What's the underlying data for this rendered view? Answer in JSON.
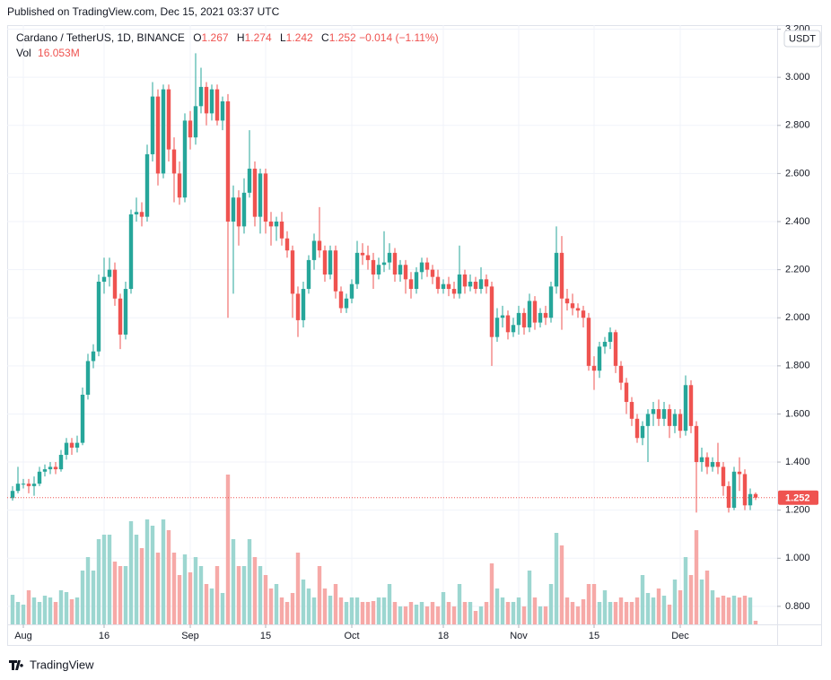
{
  "header": {
    "published": "Published on TradingView.com, Dec 15, 2021 03:37 UTC"
  },
  "footer": {
    "brand": "TradingView"
  },
  "chart_data": {
    "type": "candlestick",
    "title": "Cardano / TetherUS, 1D, BINANCE",
    "ohlc_letters": [
      "O",
      "H",
      "L",
      "C"
    ],
    "change_label": "−0.014 (−1.11%)",
    "volume_name": "Vol",
    "volume_label": "16.053M",
    "currency": "USDT",
    "x": [
      "2021-07-30",
      "2021-07-31",
      "2021-08-01",
      "2021-08-02",
      "2021-08-03",
      "2021-08-04",
      "2021-08-05",
      "2021-08-06",
      "2021-08-07",
      "2021-08-08",
      "2021-08-09",
      "2021-08-10",
      "2021-08-11",
      "2021-08-12",
      "2021-08-13",
      "2021-08-14",
      "2021-08-15",
      "2021-08-16",
      "2021-08-17",
      "2021-08-18",
      "2021-08-19",
      "2021-08-20",
      "2021-08-21",
      "2021-08-22",
      "2021-08-23",
      "2021-08-24",
      "2021-08-25",
      "2021-08-26",
      "2021-08-27",
      "2021-08-28",
      "2021-08-29",
      "2021-08-30",
      "2021-08-31",
      "2021-09-01",
      "2021-09-02",
      "2021-09-03",
      "2021-09-04",
      "2021-09-05",
      "2021-09-06",
      "2021-09-07",
      "2021-09-08",
      "2021-09-09",
      "2021-09-10",
      "2021-09-11",
      "2021-09-12",
      "2021-09-13",
      "2021-09-14",
      "2021-09-15",
      "2021-09-16",
      "2021-09-17",
      "2021-09-18",
      "2021-09-19",
      "2021-09-20",
      "2021-09-21",
      "2021-09-22",
      "2021-09-23",
      "2021-09-24",
      "2021-09-25",
      "2021-09-26",
      "2021-09-27",
      "2021-09-28",
      "2021-09-29",
      "2021-09-30",
      "2021-10-01",
      "2021-10-02",
      "2021-10-03",
      "2021-10-04",
      "2021-10-05",
      "2021-10-06",
      "2021-10-07",
      "2021-10-08",
      "2021-10-09",
      "2021-10-10",
      "2021-10-11",
      "2021-10-12",
      "2021-10-13",
      "2021-10-14",
      "2021-10-15",
      "2021-10-16",
      "2021-10-17",
      "2021-10-18",
      "2021-10-19",
      "2021-10-20",
      "2021-10-21",
      "2021-10-22",
      "2021-10-23",
      "2021-10-24",
      "2021-10-25",
      "2021-10-26",
      "2021-10-27",
      "2021-10-28",
      "2021-10-29",
      "2021-10-30",
      "2021-10-31",
      "2021-11-01",
      "2021-11-02",
      "2021-11-03",
      "2021-11-04",
      "2021-11-05",
      "2021-11-06",
      "2021-11-07",
      "2021-11-08",
      "2021-11-09",
      "2021-11-10",
      "2021-11-11",
      "2021-11-12",
      "2021-11-13",
      "2021-11-14",
      "2021-11-15",
      "2021-11-16",
      "2021-11-17",
      "2021-11-18",
      "2021-11-19",
      "2021-11-20",
      "2021-11-21",
      "2021-11-22",
      "2021-11-23",
      "2021-11-24",
      "2021-11-25",
      "2021-11-26",
      "2021-11-27",
      "2021-11-28",
      "2021-11-29",
      "2021-11-30",
      "2021-12-01",
      "2021-12-02",
      "2021-12-03",
      "2021-12-04",
      "2021-12-05",
      "2021-12-06",
      "2021-12-07",
      "2021-12-08",
      "2021-12-09",
      "2021-12-10",
      "2021-12-11",
      "2021-12-12",
      "2021-12-13",
      "2021-12-14",
      "2021-12-15"
    ],
    "open": [
      1.25,
      1.28,
      1.31,
      1.31,
      1.3,
      1.31,
      1.36,
      1.37,
      1.38,
      1.37,
      1.43,
      1.48,
      1.46,
      1.48,
      1.68,
      1.82,
      1.86,
      2.15,
      2.17,
      2.2,
      2.08,
      1.93,
      2.12,
      2.43,
      2.44,
      2.42,
      2.68,
      2.92,
      2.6,
      2.95,
      2.7,
      2.6,
      2.5,
      2.82,
      2.75,
      2.88,
      2.96,
      2.85,
      2.95,
      2.82,
      2.9,
      2.4,
      2.5,
      2.38,
      2.52,
      2.62,
      2.42,
      2.6,
      2.4,
      2.38,
      2.4,
      2.33,
      2.28,
      2.1,
      1.99,
      2.12,
      2.24,
      2.32,
      2.28,
      2.18,
      2.28,
      2.11,
      2.04,
      2.08,
      2.14,
      2.27,
      2.26,
      2.24,
      2.18,
      2.22,
      2.23,
      2.27,
      2.18,
      2.22,
      2.16,
      2.12,
      2.19,
      2.23,
      2.2,
      2.17,
      2.12,
      2.14,
      2.12,
      2.1,
      2.18,
      2.13,
      2.15,
      2.12,
      2.16,
      2.13,
      1.92,
      2.0,
      2.01,
      1.94,
      1.97,
      2.02,
      1.96,
      2.07,
      1.98,
      2.02,
      2.0,
      2.13,
      2.27,
      2.08,
      2.06,
      2.04,
      2.03,
      2.0,
      1.8,
      1.78,
      1.88,
      1.9,
      1.94,
      1.8,
      1.73,
      1.65,
      1.58,
      1.5,
      1.55,
      1.6,
      1.62,
      1.58,
      1.62,
      1.55,
      1.6,
      1.53,
      1.72,
      1.55,
      1.4,
      1.42,
      1.38,
      1.4,
      1.38,
      1.3,
      1.21,
      1.36,
      1.35,
      1.22,
      1.267
    ],
    "high": [
      1.3,
      1.38,
      1.33,
      1.33,
      1.34,
      1.38,
      1.39,
      1.4,
      1.4,
      1.45,
      1.5,
      1.5,
      1.51,
      1.71,
      1.85,
      1.89,
      2.18,
      2.25,
      2.25,
      2.23,
      2.1,
      2.15,
      2.45,
      2.5,
      2.48,
      2.72,
      2.98,
      2.95,
      2.97,
      2.97,
      2.75,
      2.65,
      2.85,
      2.86,
      3.1,
      3.04,
      2.98,
      2.97,
      2.97,
      2.92,
      2.93,
      2.55,
      2.53,
      2.58,
      2.78,
      2.65,
      2.62,
      2.62,
      2.44,
      2.42,
      2.44,
      2.36,
      2.3,
      2.13,
      2.15,
      2.26,
      2.35,
      2.46,
      2.3,
      2.3,
      2.3,
      2.13,
      2.1,
      2.16,
      2.32,
      2.31,
      2.3,
      2.27,
      2.25,
      2.36,
      2.31,
      2.29,
      2.24,
      2.24,
      2.19,
      2.21,
      2.25,
      2.25,
      2.22,
      2.2,
      2.16,
      2.17,
      2.15,
      2.3,
      2.2,
      2.18,
      2.17,
      2.21,
      2.18,
      2.15,
      2.04,
      2.05,
      2.03,
      2.0,
      2.05,
      2.04,
      2.1,
      2.09,
      2.04,
      2.05,
      2.15,
      2.38,
      2.34,
      2.12,
      2.1,
      2.06,
      2.05,
      2.02,
      1.84,
      1.9,
      1.92,
      1.96,
      1.95,
      1.82,
      1.75,
      1.67,
      1.6,
      1.57,
      1.62,
      1.65,
      1.66,
      1.65,
      1.64,
      1.62,
      1.62,
      1.76,
      1.74,
      1.57,
      1.46,
      1.44,
      1.42,
      1.48,
      1.4,
      1.32,
      1.38,
      1.42,
      1.37,
      1.29,
      1.274
    ],
    "low": [
      1.24,
      1.27,
      1.29,
      1.27,
      1.26,
      1.3,
      1.34,
      1.35,
      1.35,
      1.36,
      1.41,
      1.43,
      1.44,
      1.47,
      1.66,
      1.79,
      1.84,
      2.1,
      2.13,
      2.05,
      1.87,
      1.91,
      2.1,
      2.4,
      2.38,
      2.4,
      2.65,
      2.55,
      2.58,
      2.65,
      2.48,
      2.47,
      2.48,
      2.7,
      2.72,
      2.85,
      2.8,
      2.82,
      2.8,
      2.78,
      2.0,
      2.1,
      2.3,
      2.35,
      2.5,
      2.38,
      2.35,
      2.35,
      2.3,
      2.32,
      2.3,
      2.25,
      2.0,
      1.92,
      1.96,
      2.1,
      2.2,
      2.25,
      2.15,
      2.16,
      2.08,
      2.02,
      2.02,
      2.06,
      2.12,
      2.22,
      2.2,
      2.12,
      2.16,
      2.19,
      2.2,
      2.15,
      2.15,
      2.1,
      2.08,
      2.1,
      2.16,
      2.17,
      2.14,
      2.1,
      2.1,
      2.09,
      2.08,
      2.08,
      2.1,
      2.11,
      2.1,
      2.1,
      2.1,
      1.8,
      1.9,
      1.96,
      1.91,
      1.92,
      1.93,
      1.93,
      1.94,
      1.95,
      1.96,
      1.97,
      1.98,
      2.1,
      1.95,
      2.03,
      2.01,
      2.0,
      1.96,
      1.78,
      1.7,
      1.75,
      1.85,
      1.87,
      1.77,
      1.7,
      1.6,
      1.55,
      1.48,
      1.47,
      1.4,
      1.55,
      1.55,
      1.55,
      1.5,
      1.52,
      1.5,
      1.51,
      1.52,
      1.19,
      1.36,
      1.35,
      1.36,
      1.35,
      1.26,
      1.19,
      1.2,
      1.28,
      1.2,
      1.2,
      1.242
    ],
    "close": [
      1.28,
      1.31,
      1.31,
      1.3,
      1.31,
      1.36,
      1.37,
      1.38,
      1.37,
      1.43,
      1.48,
      1.46,
      1.48,
      1.68,
      1.82,
      1.86,
      2.15,
      2.17,
      2.2,
      2.08,
      1.93,
      2.12,
      2.43,
      2.44,
      2.42,
      2.68,
      2.92,
      2.6,
      2.95,
      2.7,
      2.6,
      2.5,
      2.82,
      2.75,
      2.88,
      2.96,
      2.85,
      2.95,
      2.82,
      2.9,
      2.4,
      2.5,
      2.38,
      2.52,
      2.62,
      2.42,
      2.6,
      2.4,
      2.38,
      2.4,
      2.33,
      2.28,
      2.1,
      1.99,
      2.12,
      2.24,
      2.32,
      2.28,
      2.18,
      2.28,
      2.11,
      2.04,
      2.08,
      2.14,
      2.27,
      2.26,
      2.24,
      2.18,
      2.22,
      2.23,
      2.27,
      2.18,
      2.22,
      2.16,
      2.12,
      2.19,
      2.23,
      2.2,
      2.17,
      2.12,
      2.14,
      2.12,
      2.1,
      2.18,
      2.13,
      2.15,
      2.12,
      2.16,
      2.13,
      1.92,
      2.0,
      2.01,
      1.94,
      1.97,
      2.02,
      1.96,
      2.07,
      1.98,
      2.02,
      2.0,
      2.13,
      2.27,
      2.08,
      2.06,
      2.04,
      2.03,
      2.0,
      1.8,
      1.78,
      1.88,
      1.9,
      1.94,
      1.8,
      1.73,
      1.65,
      1.58,
      1.5,
      1.55,
      1.6,
      1.62,
      1.58,
      1.62,
      1.55,
      1.6,
      1.53,
      1.72,
      1.55,
      1.4,
      1.42,
      1.38,
      1.4,
      1.38,
      1.3,
      1.21,
      1.36,
      1.35,
      1.22,
      1.267,
      1.252
    ],
    "volume": [
      132,
      100,
      88,
      152,
      120,
      100,
      128,
      120,
      100,
      152,
      144,
      112,
      120,
      240,
      300,
      240,
      380,
      400,
      400,
      280,
      260,
      260,
      460,
      400,
      340,
      468,
      440,
      320,
      468,
      420,
      320,
      220,
      312,
      232,
      300,
      260,
      180,
      160,
      260,
      140,
      668,
      380,
      260,
      260,
      380,
      300,
      260,
      220,
      160,
      180,
      120,
      100,
      140,
      320,
      200,
      160,
      120,
      260,
      160,
      128,
      180,
      120,
      100,
      120,
      120,
      100,
      100,
      104,
      120,
      120,
      180,
      100,
      80,
      80,
      100,
      88,
      100,
      80,
      100,
      80,
      144,
      100,
      80,
      180,
      100,
      100,
      60,
      80,
      100,
      272,
      160,
      120,
      100,
      100,
      120,
      80,
      240,
      120,
      80,
      80,
      180,
      408,
      352,
      120,
      100,
      80,
      112,
      180,
      180,
      100,
      152,
      100,
      100,
      120,
      100,
      100,
      120,
      220,
      140,
      120,
      160,
      128,
      88,
      200,
      152,
      300,
      220,
      420,
      200,
      240,
      152,
      120,
      128,
      120,
      128,
      120,
      128,
      120,
      16.053
    ],
    "up_color": "#26a69a",
    "down_color": "#ef5350",
    "up_volume_color": "#9cd6d0",
    "down_volume_color": "#f6a9a7",
    "xlim": [
      "2021-07-29",
      "2021-12-19"
    ],
    "xticks": [
      {
        "value": "2021-08-01",
        "label": "Aug"
      },
      {
        "value": "2021-08-16",
        "label": "16"
      },
      {
        "value": "2021-09-01",
        "label": "Sep"
      },
      {
        "value": "2021-09-15",
        "label": "15"
      },
      {
        "value": "2021-10-01",
        "label": "Oct"
      },
      {
        "value": "2021-10-18",
        "label": "18"
      },
      {
        "value": "2021-11-01",
        "label": "Nov"
      },
      {
        "value": "2021-11-15",
        "label": "15"
      },
      {
        "value": "2021-12-01",
        "label": "Dec"
      }
    ],
    "ylim": [
      0.725,
      3.217
    ],
    "yticks": [
      {
        "value": 0.8,
        "label": "0.800"
      },
      {
        "value": 1,
        "label": "1.000"
      },
      {
        "value": 1.2,
        "label": "1.200"
      },
      {
        "value": 1.4,
        "label": "1.400"
      },
      {
        "value": 1.6,
        "label": "1.600"
      },
      {
        "value": 1.8,
        "label": "1.800"
      },
      {
        "value": 2,
        "label": "2.000"
      },
      {
        "value": 2.2,
        "label": "2.200"
      },
      {
        "value": 2.4,
        "label": "2.400"
      },
      {
        "value": 2.6,
        "label": "2.600"
      },
      {
        "value": 2.8,
        "label": "2.800"
      },
      {
        "value": 3,
        "label": "3.000"
      },
      {
        "value": 3.2,
        "label": "3.200"
      }
    ],
    "volume_ylim": [
      0,
      2672
    ],
    "grid": true,
    "last_price_line": true
  }
}
